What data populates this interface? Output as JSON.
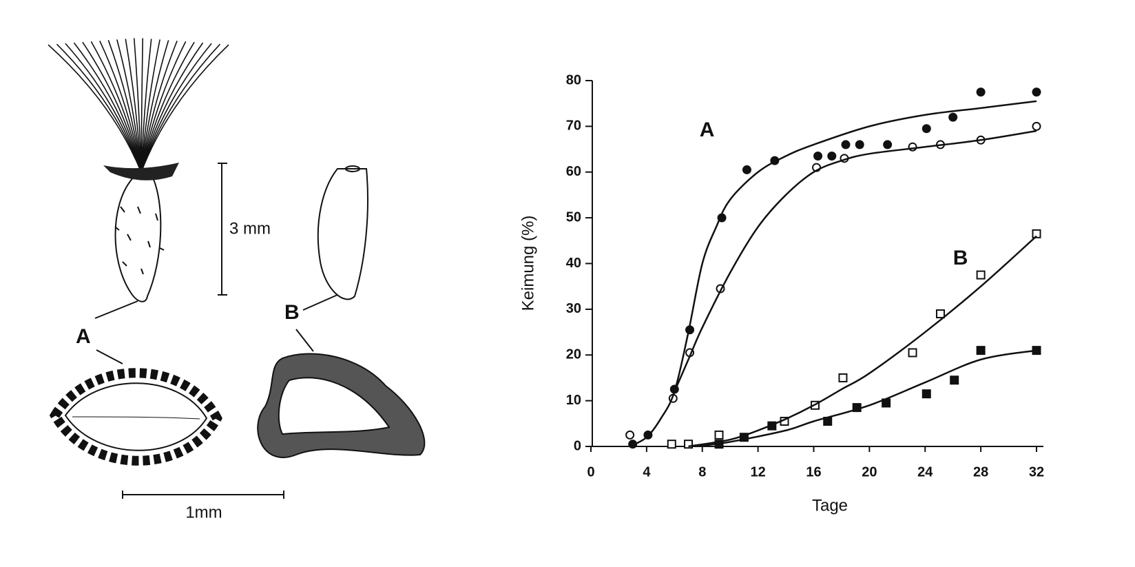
{
  "figure": {
    "labels": {
      "a": "A",
      "b": "B",
      "scale_3mm": "3 mm",
      "scale_1mm": "1mm"
    }
  },
  "chart_data": {
    "type": "scatter",
    "annotations": [
      {
        "text": "A",
        "x": 7.8,
        "y": 69
      },
      {
        "text": "B",
        "x": 26,
        "y": 41
      }
    ],
    "x_label": "Tage",
    "y_label": "Keimung (%)",
    "xlim": [
      0,
      32.2
    ],
    "ylim": [
      0,
      80
    ],
    "xticks": [
      0,
      4,
      8,
      12,
      16,
      20,
      24,
      28,
      32
    ],
    "yticks": [
      0,
      10,
      20,
      30,
      40,
      50,
      60,
      70,
      80
    ],
    "series": [
      {
        "marker": "filled-circle",
        "color": "#111111",
        "x": [
          3,
          4.1,
          6,
          7.1,
          9.4,
          11.2,
          13.2,
          16.3,
          17.3,
          18.3,
          19.3,
          21.3,
          24.1,
          26,
          28,
          32
        ],
        "values": [
          0.5,
          2.5,
          12.5,
          25.5,
          50,
          60.5,
          62.5,
          63.5,
          63.5,
          66,
          66,
          66,
          69.5,
          72,
          77.5,
          77.5
        ]
      },
      {
        "marker": "open-circle",
        "color": "#111111",
        "x": [
          2.8,
          5.9,
          7.1,
          9.3,
          16.2,
          18.2,
          23.1,
          25.1,
          28,
          32
        ],
        "values": [
          2.5,
          10.5,
          20.5,
          34.5,
          61,
          63,
          65.5,
          66,
          67,
          70
        ]
      },
      {
        "marker": "open-square",
        "color": "#111111",
        "x": [
          5.8,
          7,
          9.2,
          13.9,
          16.1,
          18.1,
          23.1,
          25.1,
          28,
          32
        ],
        "values": [
          0.5,
          0.5,
          2.5,
          5.5,
          9,
          15,
          20.5,
          29,
          37.5,
          46.5
        ]
      },
      {
        "marker": "filled-square",
        "color": "#111111",
        "x": [
          9.2,
          11,
          13,
          17,
          19.1,
          21.2,
          24.1,
          26.1,
          28,
          32
        ],
        "values": [
          0.5,
          2,
          4.5,
          5.5,
          8.5,
          9.5,
          11.5,
          14.5,
          21,
          21
        ]
      },
      {
        "marker": "line",
        "color": "#111111",
        "x": [
          2.8,
          4,
          5,
          6,
          7,
          8,
          9,
          10,
          12,
          14,
          16,
          20,
          24,
          28,
          32
        ],
        "values": [
          0,
          2,
          6,
          12,
          25,
          40,
          48,
          54,
          60,
          63.5,
          66,
          70,
          72.5,
          74,
          75.5
        ]
      },
      {
        "marker": "line",
        "color": "#111111",
        "x": [
          6,
          7,
          8,
          10,
          12,
          14,
          16,
          18,
          20,
          24,
          28,
          32
        ],
        "values": [
          12,
          19,
          26,
          38,
          48,
          55,
          60,
          62.5,
          64,
          65.5,
          67,
          69
        ]
      },
      {
        "marker": "line",
        "color": "#111111",
        "x": [
          7,
          10,
          12,
          14,
          16,
          18,
          20,
          24,
          28,
          32
        ],
        "values": [
          0,
          1.5,
          3.5,
          6,
          9,
          12.5,
          16,
          25,
          35,
          46
        ]
      },
      {
        "marker": "line",
        "color": "#111111",
        "x": [
          7.5,
          10,
          14,
          16,
          20,
          24,
          28,
          32
        ],
        "values": [
          0,
          1,
          3.5,
          5.5,
          9,
          14,
          19,
          21
        ]
      }
    ]
  }
}
